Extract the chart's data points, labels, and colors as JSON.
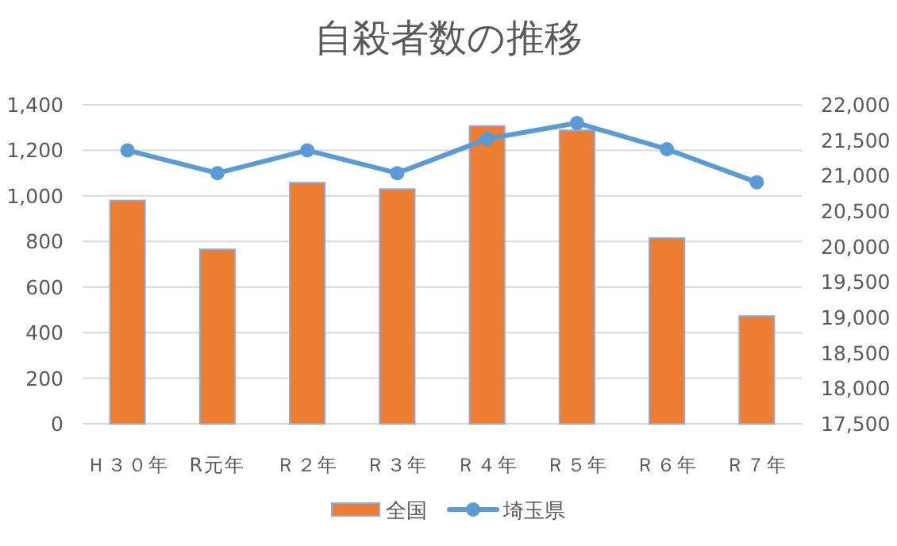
{
  "chart_data": {
    "type": "bar",
    "title": "自殺者数の推移",
    "categories": [
      "Ｈ３０年",
      "R元年",
      "Ｒ２年",
      "Ｒ３年",
      "Ｒ４年",
      "Ｒ５年",
      "Ｒ６年",
      "Ｒ７年"
    ],
    "series": [
      {
        "name": "全国",
        "axis": "y2",
        "color": "#ed7d31",
        "values": [
          20650,
          19960,
          20900,
          20810,
          21700,
          21640,
          20120,
          19020
        ]
      },
      {
        "name": "埼玉県",
        "type": "line",
        "color": "#5b9bd5",
        "values": [
          1200,
          1100,
          1200,
          1100,
          1250,
          1320,
          1205,
          1060
        ]
      }
    ],
    "ylim": [
      0,
      1400
    ],
    "yticks": [
      0,
      {
        "value": 200,
        "label": "200"
      },
      {
        "value": 400,
        "label": "400"
      },
      {
        "value": 600,
        "label": "600"
      },
      {
        "value": 800,
        "label": "800"
      },
      {
        "value": 1000,
        "label": "1,000"
      },
      {
        "value": 1200,
        "label": "1,200"
      },
      {
        "value": 1400,
        "label": "1,400"
      }
    ],
    "y2lim": [
      17500,
      22000
    ],
    "y2ticks": [
      {
        "value": 17500,
        "label": "17,500"
      },
      {
        "value": 18000,
        "label": "18,000"
      },
      {
        "value": 18500,
        "label": "18,500"
      },
      {
        "value": 19000,
        "label": "19,000"
      },
      {
        "value": 19500,
        "label": "19,500"
      },
      {
        "value": 20000,
        "label": "20,000"
      },
      {
        "value": 20500,
        "label": "20,500"
      },
      {
        "value": 21000,
        "label": "21,000"
      },
      {
        "value": 21500,
        "label": "21,500"
      },
      {
        "value": 22000,
        "label": "22,000"
      }
    ],
    "grid": "y",
    "legend": "bottom",
    "marker": "circle"
  }
}
